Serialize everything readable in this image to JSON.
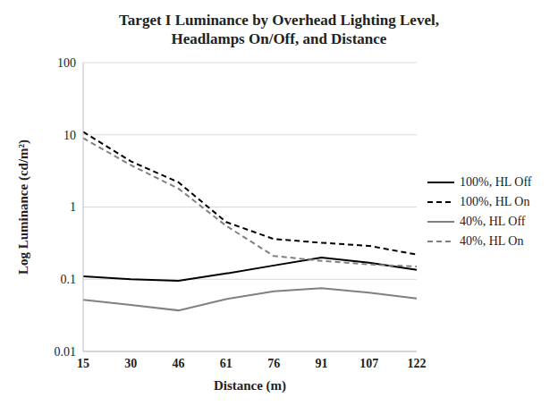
{
  "chart_data": {
    "type": "line",
    "title": "Target I Luminance by Overhead Lighting Level, Headlamps On/Off, and Distance",
    "x_label": "Distance (m)",
    "y_label": "Log Luminance (cd/m²)",
    "categories": [
      15,
      30,
      46,
      61,
      76,
      91,
      107,
      122
    ],
    "log": "y",
    "ylim": [
      0.01,
      100
    ],
    "yticks": [
      0.01,
      0.1,
      1,
      10,
      100
    ],
    "grid": true,
    "legend": "right",
    "series": [
      {
        "name": "100%, HL Off",
        "color": "#000000",
        "line_style": "solid",
        "values": [
          0.11,
          0.1,
          0.095,
          0.12,
          0.155,
          0.2,
          0.17,
          0.135
        ]
      },
      {
        "name": "100%, HL On",
        "color": "#000000",
        "line_style": "dashed",
        "values": [
          11,
          4.3,
          2.2,
          0.62,
          0.36,
          0.32,
          0.29,
          0.22
        ]
      },
      {
        "name": "40%, HL Off",
        "color": "#808080",
        "line_style": "solid",
        "values": [
          0.052,
          0.044,
          0.037,
          0.053,
          0.068,
          0.075,
          0.065,
          0.054
        ]
      },
      {
        "name": "40%, HL On",
        "color": "#808080",
        "line_style": "dashed",
        "values": [
          9,
          3.8,
          1.8,
          0.55,
          0.21,
          0.18,
          0.16,
          0.15
        ]
      }
    ]
  }
}
